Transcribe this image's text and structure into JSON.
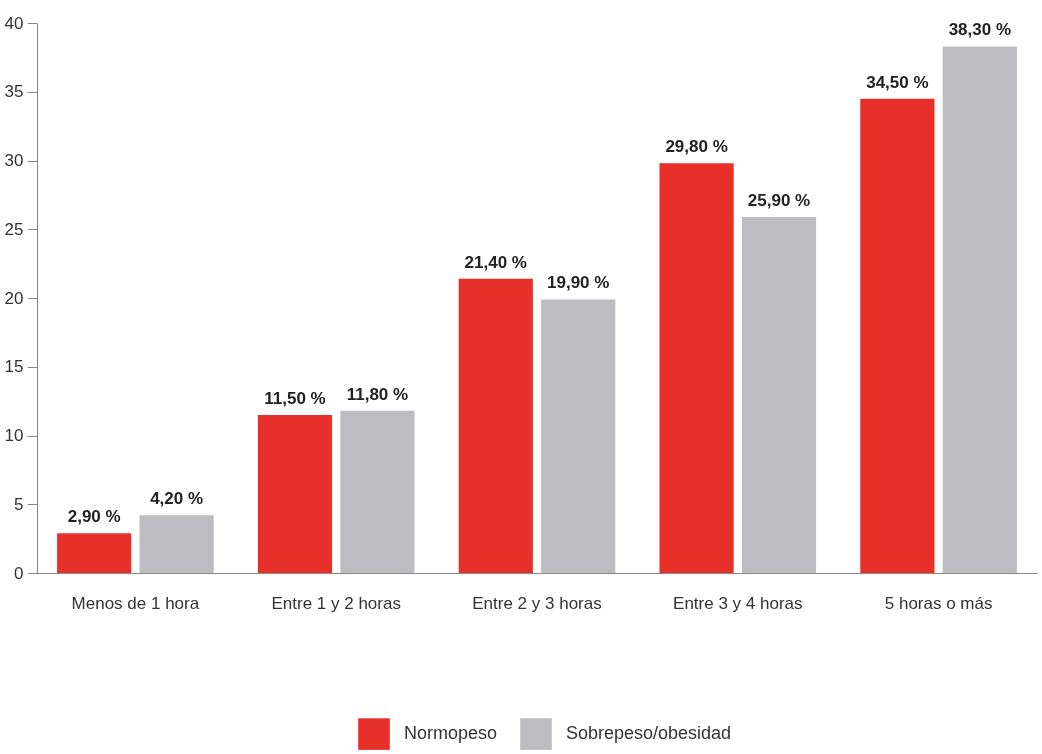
{
  "chart_data": {
    "type": "bar",
    "categories": [
      "Menos de 1 hora",
      "Entre 1 y 2 horas",
      "Entre 2 y 3 horas",
      "Entre 3 y 4 horas",
      "5 horas o más"
    ],
    "series": [
      {
        "name": "Normopeso",
        "color": "#e8302a",
        "values": [
          2.9,
          11.5,
          21.4,
          29.8,
          34.5
        ],
        "value_labels": [
          "2,90 %",
          "11,50 %",
          "21,40 %",
          "29,80 %",
          "34,50 %"
        ]
      },
      {
        "name": "Sobrepeso/obesidad",
        "color": "#bdbdc1",
        "values": [
          4.2,
          11.8,
          19.9,
          25.9,
          38.3
        ],
        "value_labels": [
          "4,20 %",
          "11,80 %",
          "19,90 %",
          "25,90 %",
          "38,30 %"
        ]
      }
    ],
    "ylim": [
      0,
      40
    ],
    "yticks": [
      0,
      5,
      10,
      15,
      20,
      25,
      30,
      35,
      40
    ],
    "grid": false,
    "legend": "bottom"
  }
}
